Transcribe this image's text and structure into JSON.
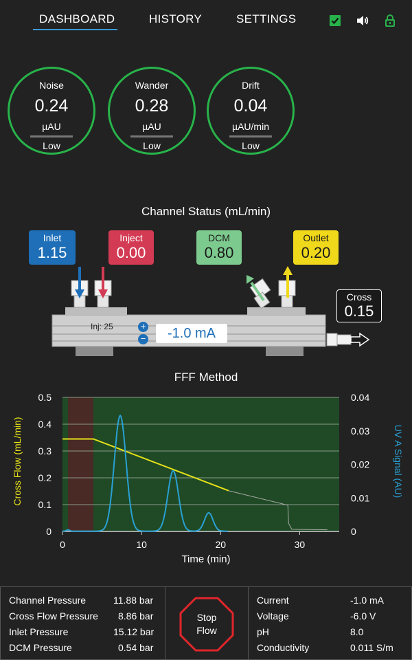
{
  "nav": {
    "tabs": [
      {
        "label": "DASHBOARD",
        "active": true
      },
      {
        "label": "HISTORY",
        "active": false
      },
      {
        "label": "SETTINGS",
        "active": false
      }
    ],
    "icons": [
      "check-icon",
      "speaker-icon",
      "lock-icon"
    ],
    "accent": "#3a9bd9"
  },
  "gauges": [
    {
      "label": "Noise",
      "value": "0.24",
      "unit": "µAU",
      "level": "Low"
    },
    {
      "label": "Wander",
      "value": "0.28",
      "unit": "µAU",
      "level": "Low"
    },
    {
      "label": "Drift",
      "value": "0.04",
      "unit": "µAU/min",
      "level": "Low"
    }
  ],
  "gauge_color": "#28b34a",
  "channel": {
    "title": "Channel Status (mL/min)",
    "inlet": {
      "label": "Inlet",
      "value": "1.15",
      "color": "#1e6fb8"
    },
    "inject": {
      "label": "Inject",
      "value": "0.00",
      "color": "#d33b54"
    },
    "dcm": {
      "label": "DCM",
      "value": "0.80",
      "color": "#7dca8e"
    },
    "outlet": {
      "label": "Outlet",
      "value": "0.20",
      "color": "#f0d81b"
    },
    "cross": {
      "label": "Cross",
      "value": "0.15"
    },
    "inj_text": "Inj: 25",
    "current_display": "-1.0 mA",
    "plus": "+",
    "minus": "−"
  },
  "chart_data": {
    "type": "line",
    "title": "FFF Method",
    "xlabel": "Time (min)",
    "ylabel": "Cross Flow (mL/min)",
    "y2label": "UV A Signal (AU)",
    "xlim": [
      0,
      35
    ],
    "ylim": [
      0,
      0.5
    ],
    "y2lim": [
      0,
      0.04
    ],
    "xticks": [
      "0",
      "10",
      "20",
      "30"
    ],
    "yticks": [
      "0",
      "0.1",
      "0.2",
      "0.3",
      "0.4",
      "0.5"
    ],
    "y2ticks": [
      "0",
      "0.01",
      "0.02",
      "0.03",
      "0.04"
    ],
    "grid": true,
    "injection_window": [
      0.7,
      3.9
    ],
    "series": [
      {
        "axis": "left",
        "color": "#e6e11a",
        "x": [
          0,
          3.9,
          21
        ],
        "y": [
          0.345,
          0.345,
          0.152
        ]
      },
      {
        "axis": "left",
        "color": "#aaaaaa",
        "x": [
          21,
          28.5,
          28.6,
          29,
          33.5
        ],
        "y": [
          0.152,
          0.098,
          0.03,
          0.008,
          0.006
        ]
      },
      {
        "axis": "right",
        "color": "#2aa0d4",
        "peaks": [
          [
            7.3,
            0.0345,
            1.1
          ],
          [
            14,
            0.018,
            1.0
          ],
          [
            18.5,
            0.0055,
            0.8
          ],
          [
            0.7,
            0.0004,
            0.3
          ]
        ],
        "x_end": 21
      }
    ]
  },
  "bottom": {
    "left": [
      {
        "label": "Channel Pressure",
        "value": "11.88 bar"
      },
      {
        "label": "Cross Flow Pressure",
        "value": "8.86 bar"
      },
      {
        "label": "Inlet Pressure",
        "value": "15.12 bar"
      },
      {
        "label": "DCM Pressure",
        "value": "0.54 bar"
      }
    ],
    "stop_label_line1": "Stop",
    "stop_label_line2": "Flow",
    "stop_color": "#e0262b",
    "right": [
      {
        "label": "Current",
        "value": "-1.0 mA"
      },
      {
        "label": "Voltage",
        "value": "-6.0 V"
      },
      {
        "label": "pH",
        "value": "8.0"
      },
      {
        "label": "Conductivity",
        "value": "0.011 S/m"
      }
    ]
  }
}
